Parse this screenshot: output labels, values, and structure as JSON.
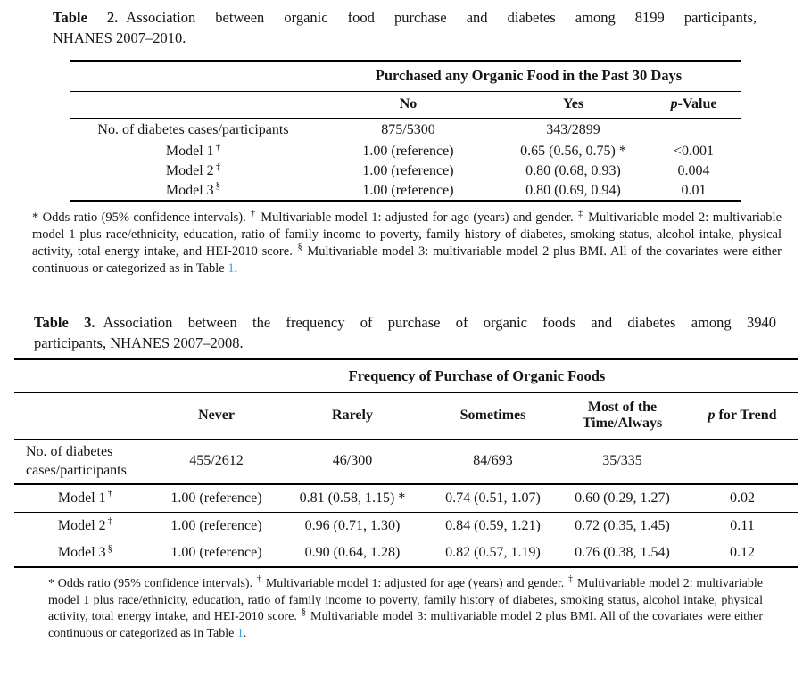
{
  "colors": {
    "text": "#151515",
    "rule": "#000000",
    "link": "#3a9fd6"
  },
  "table2": {
    "caption_label": "Table 2.",
    "caption_line1": "Association between organic food purchase and diabetes among 8199 participants,",
    "caption_line2": "NHANES 2007–2010.",
    "span_header": "Purchased any Organic Food in the Past 30 Days",
    "col_headers": {
      "no": "No",
      "yes": "Yes",
      "p_italic": "p",
      "p_rest": "-Value"
    },
    "rows": [
      {
        "label": "No. of diabetes cases/participants",
        "sup": "",
        "cells": [
          "875/5300",
          "343/2899",
          ""
        ]
      },
      {
        "label": "Model 1",
        "sup": "†",
        "cells": [
          "1.00 (reference)",
          "0.65 (0.56, 0.75) *",
          "<0.001"
        ]
      },
      {
        "label": "Model 2",
        "sup": "‡",
        "cells": [
          "1.00 (reference)",
          "0.80 (0.68, 0.93)",
          "0.004"
        ]
      },
      {
        "label": "Model 3",
        "sup": "§",
        "cells": [
          "1.00 (reference)",
          "0.80 (0.69, 0.94)",
          "0.01"
        ]
      }
    ],
    "footnote_segments": [
      {
        "text": "* Odds ratio (95% confidence intervals). "
      },
      {
        "text": "†",
        "sup": true
      },
      {
        "text": " Multivariable model 1: adjusted for age (years) and gender. "
      },
      {
        "text": "‡",
        "sup": true
      },
      {
        "text": " Multivariable model 2: multivariable model 1 plus race/ethnicity, education, ratio of family income to poverty, family history of diabetes, smoking status, alcohol intake, physical activity, total energy intake, and HEI-2010 score. "
      },
      {
        "text": "§",
        "sup": true
      },
      {
        "text": " Multivariable model 3: multivariable model 2 plus BMI. All of the covariates were either continuous or categorized as in Table "
      },
      {
        "text": "1",
        "link": true
      },
      {
        "text": "."
      }
    ]
  },
  "table3": {
    "caption_label": "Table 3.",
    "caption_line1": "Association between the frequency of purchase of organic foods and diabetes among 3940",
    "caption_line2": "participants, NHANES 2007–2008.",
    "span_header": "Frequency of Purchase of Organic Foods",
    "col_headers": {
      "c1": "Never",
      "c2": "Rarely",
      "c3": "Sometimes",
      "c4_line1": "Most of the",
      "c4_line2": "Time/Always",
      "p_italic": "p",
      "p_rest": " for Trend"
    },
    "rows": [
      {
        "label_line1": "No. of diabetes",
        "label_line2": "cases/participants",
        "sup": "",
        "cells": [
          "455/2612",
          "46/300",
          "84/693",
          "35/335",
          ""
        ]
      },
      {
        "label": "Model 1",
        "sup": "†",
        "cells": [
          "1.00 (reference)",
          "0.81 (0.58, 1.15) *",
          "0.74 (0.51, 1.07)",
          "0.60 (0.29, 1.27)",
          "0.02"
        ]
      },
      {
        "label": "Model 2",
        "sup": "‡",
        "cells": [
          "1.00 (reference)",
          "0.96 (0.71, 1.30)",
          "0.84 (0.59, 1.21)",
          "0.72 (0.35, 1.45)",
          "0.11"
        ]
      },
      {
        "label": "Model 3",
        "sup": "§",
        "cells": [
          "1.00 (reference)",
          "0.90 (0.64, 1.28)",
          "0.82 (0.57, 1.19)",
          "0.76 (0.38, 1.54)",
          "0.12"
        ]
      }
    ],
    "footnote_segments": [
      {
        "text": "* Odds ratio (95% confidence intervals). "
      },
      {
        "text": "†",
        "sup": true
      },
      {
        "text": " Multivariable model 1: adjusted for age (years) and gender. "
      },
      {
        "text": "‡",
        "sup": true
      },
      {
        "text": " Multivariable model 2: multivariable model 1 plus race/ethnicity, education, ratio of family income to poverty, family history of diabetes, smoking status, alcohol intake, physical activity, total energy intake, and HEI-2010 score. "
      },
      {
        "text": "§",
        "sup": true
      },
      {
        "text": " Multivariable model 3: multivariable model 2 plus BMI. All of the covariates were either continuous or categorized as in Table "
      },
      {
        "text": "1",
        "link": true
      },
      {
        "text": "."
      }
    ]
  }
}
